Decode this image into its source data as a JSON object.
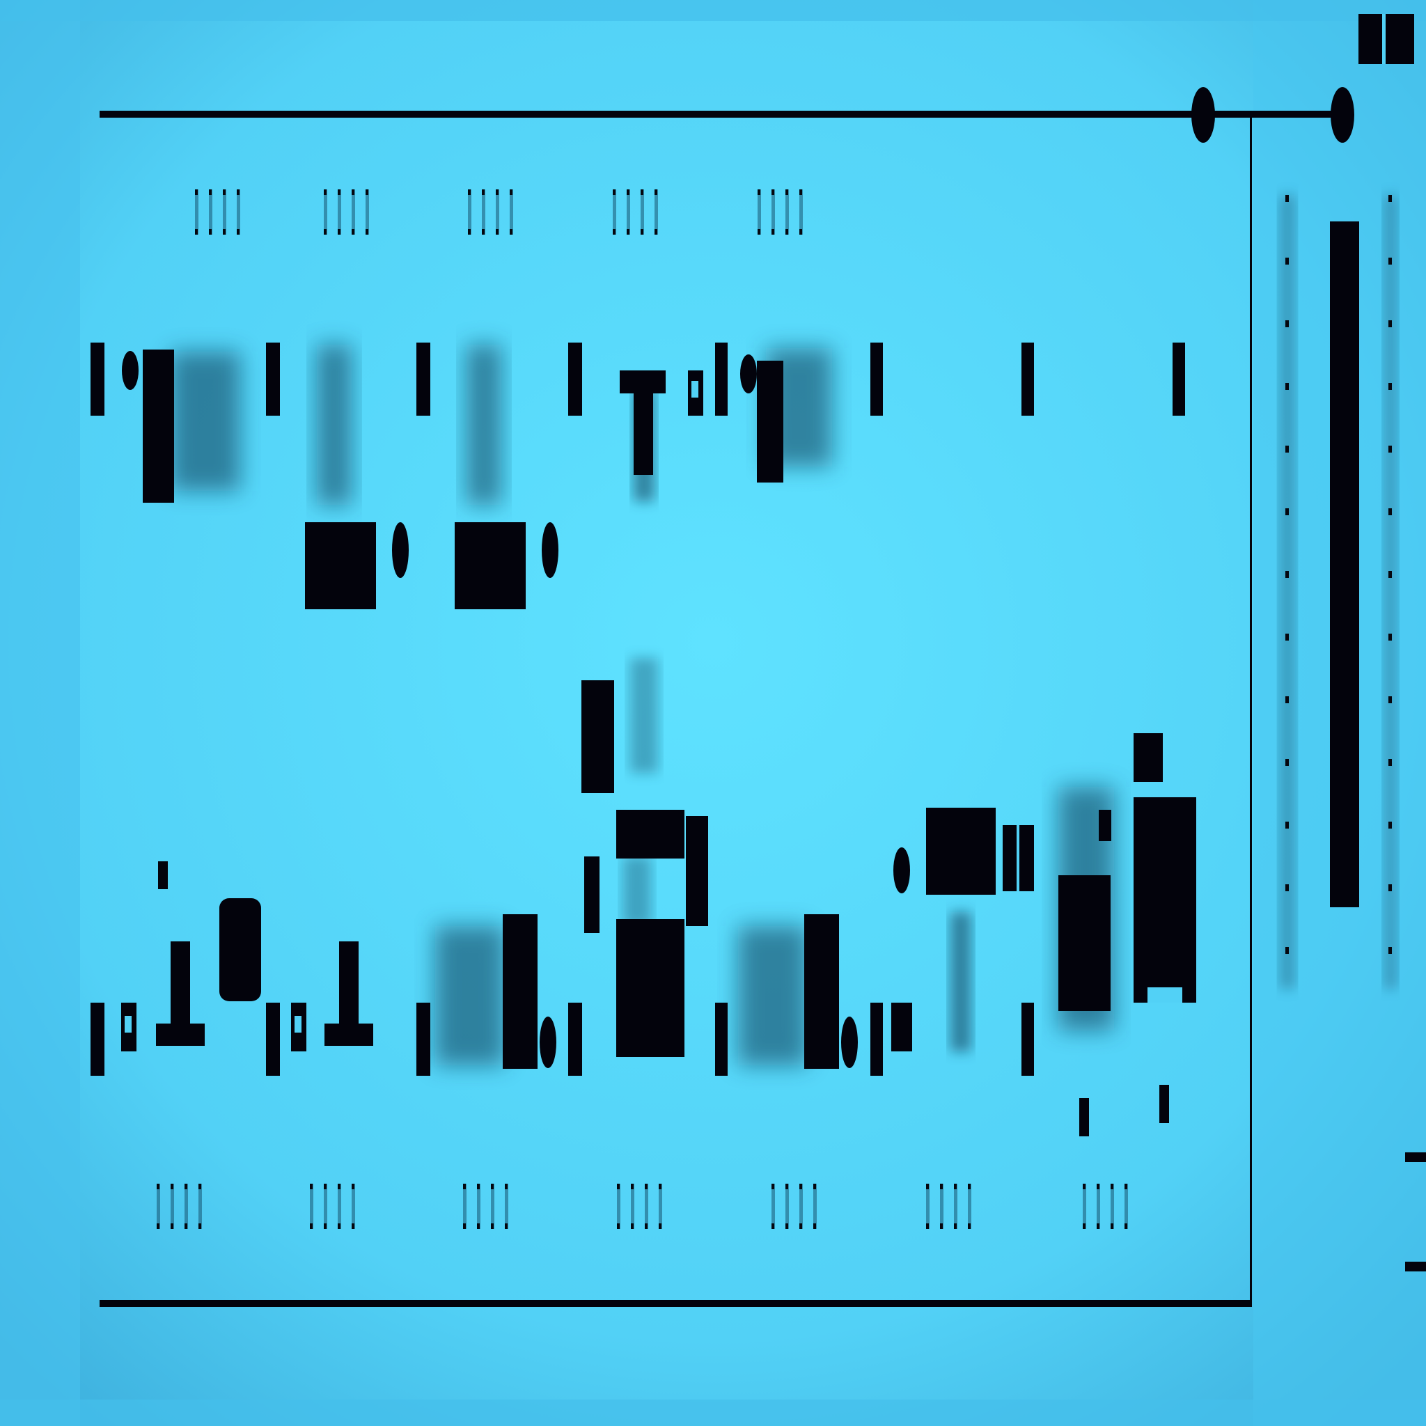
{
  "image": {
    "description_level": "abstract",
    "palette": {
      "background": "#52d1f6",
      "background_light": "#5be0ff",
      "background_edge": "#3fb8e6",
      "ink": "#03030c",
      "ghost": "#0a3a55"
    }
  }
}
